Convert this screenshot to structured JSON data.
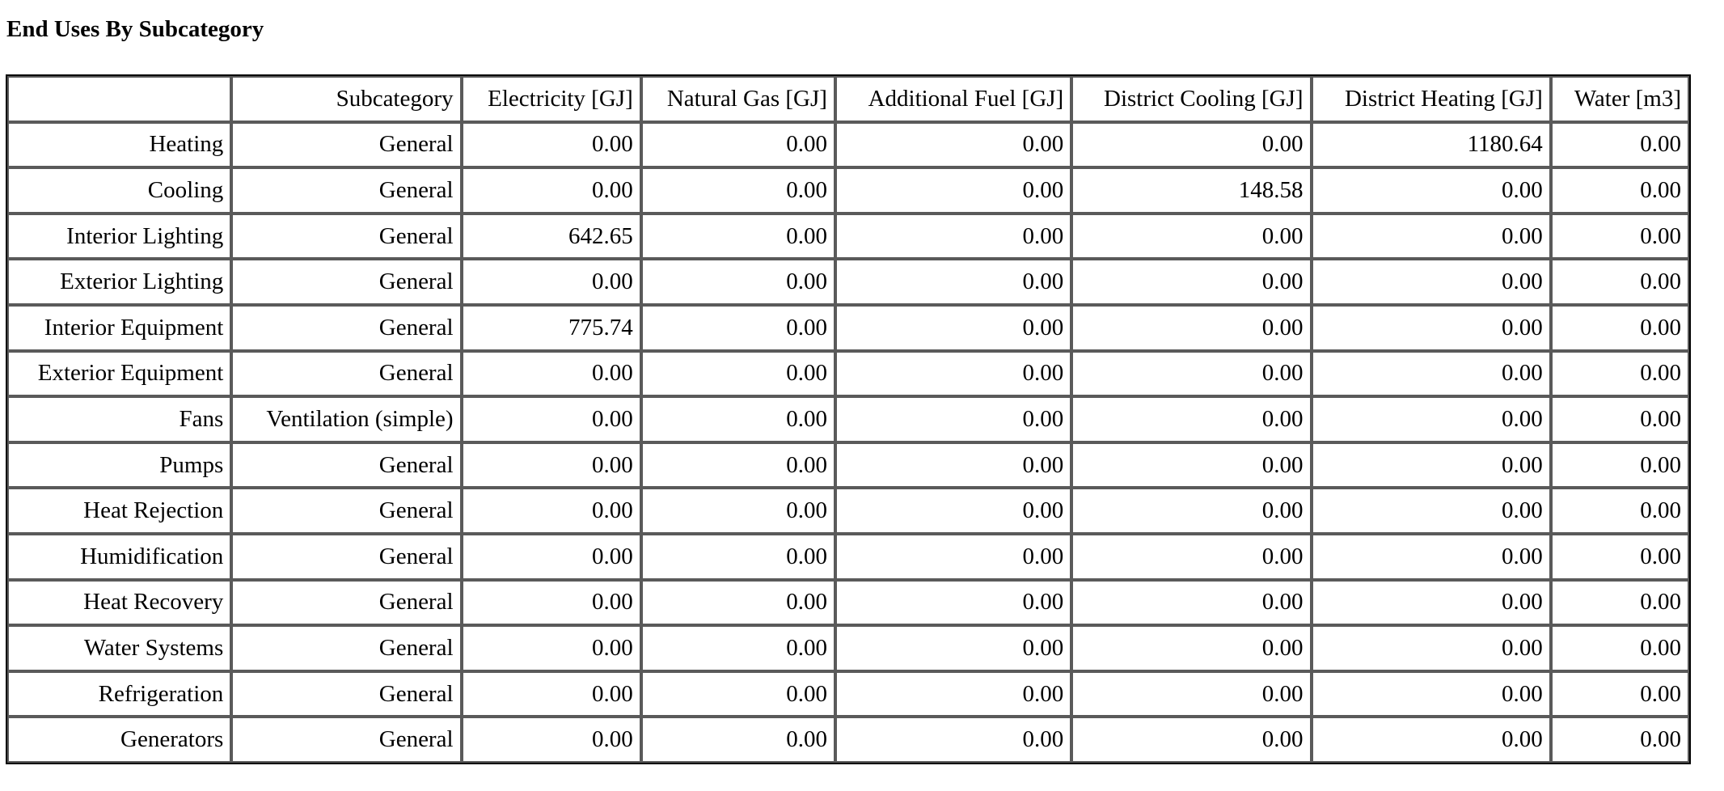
{
  "report": {
    "title": "End Uses By Subcategory"
  },
  "table": {
    "headers": [
      "",
      "Subcategory",
      "Electricity [GJ]",
      "Natural Gas [GJ]",
      "Additional Fuel [GJ]",
      "District Cooling [GJ]",
      "District Heating [GJ]",
      "Water [m3]"
    ],
    "rows": [
      {
        "end_use": "Heating",
        "subcategory": "General",
        "values": [
          "0.00",
          "0.00",
          "0.00",
          "0.00",
          "1180.64",
          "0.00"
        ]
      },
      {
        "end_use": "Cooling",
        "subcategory": "General",
        "values": [
          "0.00",
          "0.00",
          "0.00",
          "148.58",
          "0.00",
          "0.00"
        ]
      },
      {
        "end_use": "Interior Lighting",
        "subcategory": "General",
        "values": [
          "642.65",
          "0.00",
          "0.00",
          "0.00",
          "0.00",
          "0.00"
        ]
      },
      {
        "end_use": "Exterior Lighting",
        "subcategory": "General",
        "values": [
          "0.00",
          "0.00",
          "0.00",
          "0.00",
          "0.00",
          "0.00"
        ]
      },
      {
        "end_use": "Interior Equipment",
        "subcategory": "General",
        "values": [
          "775.74",
          "0.00",
          "0.00",
          "0.00",
          "0.00",
          "0.00"
        ]
      },
      {
        "end_use": "Exterior Equipment",
        "subcategory": "General",
        "values": [
          "0.00",
          "0.00",
          "0.00",
          "0.00",
          "0.00",
          "0.00"
        ]
      },
      {
        "end_use": "Fans",
        "subcategory": "Ventilation (simple)",
        "values": [
          "0.00",
          "0.00",
          "0.00",
          "0.00",
          "0.00",
          "0.00"
        ]
      },
      {
        "end_use": "Pumps",
        "subcategory": "General",
        "values": [
          "0.00",
          "0.00",
          "0.00",
          "0.00",
          "0.00",
          "0.00"
        ]
      },
      {
        "end_use": "Heat Rejection",
        "subcategory": "General",
        "values": [
          "0.00",
          "0.00",
          "0.00",
          "0.00",
          "0.00",
          "0.00"
        ]
      },
      {
        "end_use": "Humidification",
        "subcategory": "General",
        "values": [
          "0.00",
          "0.00",
          "0.00",
          "0.00",
          "0.00",
          "0.00"
        ]
      },
      {
        "end_use": "Heat Recovery",
        "subcategory": "General",
        "values": [
          "0.00",
          "0.00",
          "0.00",
          "0.00",
          "0.00",
          "0.00"
        ]
      },
      {
        "end_use": "Water Systems",
        "subcategory": "General",
        "values": [
          "0.00",
          "0.00",
          "0.00",
          "0.00",
          "0.00",
          "0.00"
        ]
      },
      {
        "end_use": "Refrigeration",
        "subcategory": "General",
        "values": [
          "0.00",
          "0.00",
          "0.00",
          "0.00",
          "0.00",
          "0.00"
        ]
      },
      {
        "end_use": "Generators",
        "subcategory": "General",
        "values": [
          "0.00",
          "0.00",
          "0.00",
          "0.00",
          "0.00",
          "0.00"
        ]
      }
    ]
  }
}
